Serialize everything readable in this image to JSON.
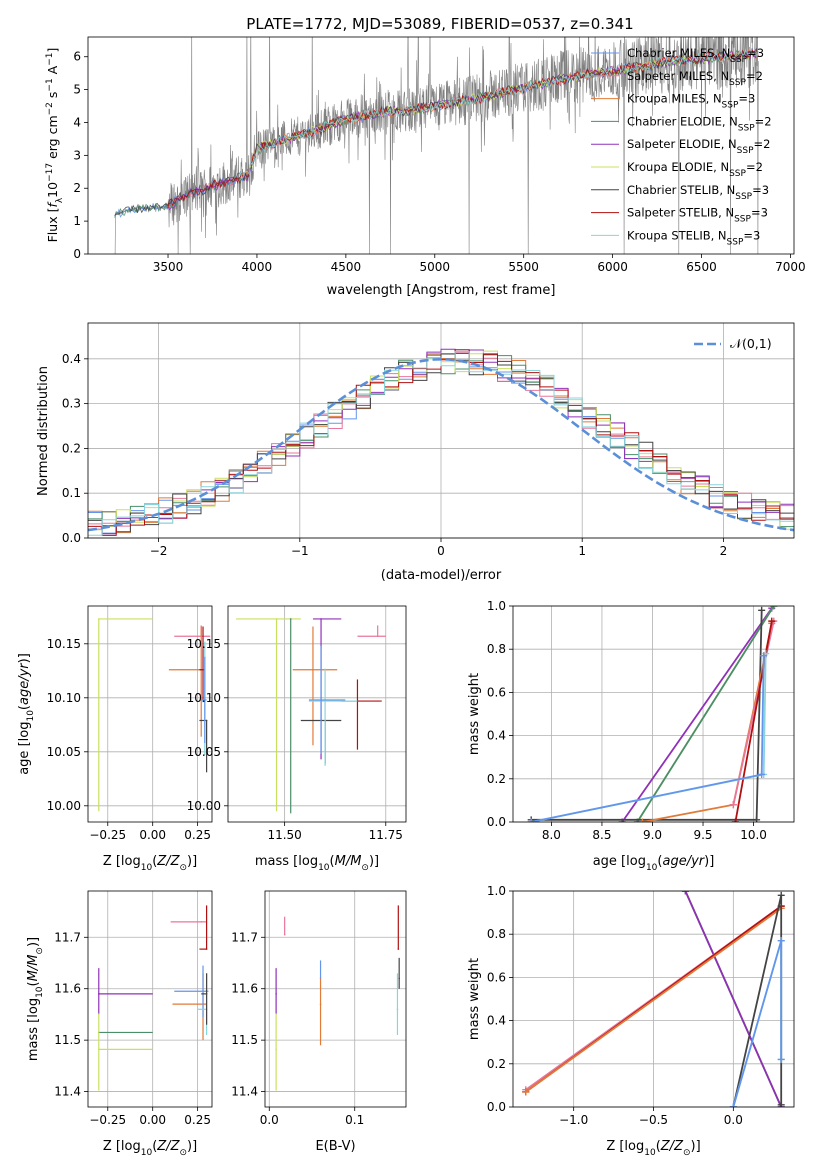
{
  "figure": {
    "title": "PLATE=1772, MJD=53089, FIBERID=0537, z=0.341"
  },
  "colors": {
    "blue": "#6495ed",
    "pink": "#e8779b",
    "orange": "#e07b39",
    "green": "#4a8f6a",
    "purple": "#9030b8",
    "yellowgreen": "#c8e060",
    "black": "#444444",
    "red": "#b01010",
    "cyan": "#88d4dc",
    "observed": "#808080",
    "gauss": "#5b8fd8"
  },
  "chart_data": [
    {
      "id": "spectrum",
      "type": "line",
      "title": "PLATE=1772, MJD=53089, FIBERID=0537, z=0.341",
      "xlabel": "wavelength [Angstrom, rest frame]",
      "ylabel": "Flux [f_λ 10^-17 erg cm^-2 s^-1 A^-1]",
      "xlim": [
        3050,
        7020
      ],
      "ylim": [
        0,
        6.6
      ],
      "xticks": [
        3500,
        4000,
        4500,
        5000,
        5500,
        6000,
        6500,
        7000
      ],
      "yticks": [
        0,
        1,
        2,
        3,
        4,
        5,
        6
      ],
      "grid": false,
      "legend_position": "top-right",
      "legend": [
        {
          "label": "Chabrier MILES, N_SSP=3",
          "color_key": "blue"
        },
        {
          "label": "Salpeter MILES, N_SSP=2",
          "color_key": "pink"
        },
        {
          "label": "Kroupa MILES, N_SSP=3",
          "color_key": "orange"
        },
        {
          "label": "Chabrier ELODIE, N_SSP=2",
          "color_key": "green"
        },
        {
          "label": "Salpeter ELODIE, N_SSP=2",
          "color_key": "purple"
        },
        {
          "label": "Kroupa ELODIE, N_SSP=2",
          "color_key": "yellowgreen"
        },
        {
          "label": "Chabrier STELIB, N_SSP=3",
          "color_key": "black"
        },
        {
          "label": "Salpeter STELIB, N_SSP=3",
          "color_key": "red"
        },
        {
          "label": "Kroupa STELIB, N_SSP=3",
          "color_key": "cyan"
        }
      ],
      "continuum": {
        "x": [
          3200,
          3300,
          3500,
          3600,
          3800,
          3950,
          4000,
          4100,
          4300,
          4500,
          4700,
          4900,
          5100,
          5300,
          5500,
          5700,
          5900,
          6100,
          6300,
          6500,
          6700,
          6820
        ],
        "y": [
          1.2,
          1.35,
          1.45,
          1.8,
          2.15,
          2.4,
          3.2,
          3.4,
          3.7,
          4.1,
          4.3,
          4.4,
          4.6,
          4.8,
          5.05,
          5.3,
          5.5,
          5.65,
          5.85,
          5.95,
          6.05,
          6.1
        ]
      }
    },
    {
      "id": "residuals",
      "type": "line",
      "xlabel": "(data-model)/error",
      "ylabel": "Normed distribution",
      "xlim": [
        -2.5,
        2.5
      ],
      "ylim": [
        0,
        0.48
      ],
      "xticks": [
        -2,
        -1,
        0,
        1,
        2
      ],
      "yticks": [
        0.0,
        0.1,
        0.2,
        0.3,
        0.4
      ],
      "grid": true,
      "legend_position": "top-right",
      "gaussian_label": "𝒩(0,1)",
      "bin_width": 0.1
    },
    {
      "id": "age_vs_Z",
      "type": "scatter",
      "xlabel": "Z [log10(Z/Z⊙)]",
      "ylabel": "age [log10(age/yr)]",
      "xlim": [
        -0.36,
        0.33
      ],
      "ylim": [
        9.985,
        10.185
      ],
      "xticks": [
        -0.25,
        0.0,
        0.25
      ],
      "yticks": [
        10.0,
        10.05,
        10.1,
        10.15
      ],
      "grid": true,
      "points": [
        {
          "key": "yellowgreen",
          "x": -0.3,
          "y": 10.173,
          "xerr": [
            0.0,
            0.3
          ],
          "yerr": [
            0.178,
            0.0
          ]
        },
        {
          "key": "pink",
          "x": 0.27,
          "y": 10.157,
          "xerr": [
            0.15,
            0.05
          ],
          "yerr": [
            0.0,
            0.01
          ]
        },
        {
          "key": "orange",
          "x": 0.27,
          "y": 10.126,
          "xerr": [
            0.18,
            0.02
          ],
          "yerr": [
            0.062,
            0.04
          ]
        },
        {
          "key": "red",
          "x": 0.28,
          "y": 10.126,
          "xerr": [
            0.02,
            0.0
          ],
          "yerr": [
            0.03,
            0.04
          ]
        },
        {
          "key": "black",
          "x": 0.3,
          "y": 10.079,
          "xerr": [
            0.04,
            0.0
          ],
          "yerr": [
            0.048,
            0.0
          ]
        },
        {
          "key": "cyan",
          "x": 0.29,
          "y": 10.097,
          "xerr": [
            0.02,
            0.0
          ],
          "yerr": [
            0.05,
            0.055
          ]
        },
        {
          "key": "blue",
          "x": 0.29,
          "y": 10.098,
          "xerr": [
            0.02,
            0.01
          ],
          "yerr": [
            0.04,
            0.04
          ]
        }
      ]
    },
    {
      "id": "age_vs_mass",
      "type": "scatter",
      "xlabel": "mass [log10(M/M⊙)]",
      "ylabel": "",
      "xlim": [
        11.36,
        11.8
      ],
      "ylim": [
        9.985,
        10.185
      ],
      "xticks": [
        11.5,
        11.75
      ],
      "yticks": [
        10.0,
        10.05,
        10.1,
        10.15
      ],
      "grid": true,
      "points": [
        {
          "key": "yellowgreen",
          "x": 11.48,
          "y": 10.173,
          "xerr": [
            0.1,
            0.06
          ],
          "yerr": [
            0.178,
            0.0
          ]
        },
        {
          "key": "green",
          "x": 11.515,
          "y": 10.173,
          "xerr": [
            0.0,
            0.0
          ],
          "yerr": [
            0.18,
            0.0
          ]
        },
        {
          "key": "pink",
          "x": 11.73,
          "y": 10.157,
          "xerr": [
            0.05,
            0.02
          ],
          "yerr": [
            0.0,
            0.01
          ]
        },
        {
          "key": "purple",
          "x": 11.59,
          "y": 10.173,
          "xerr": [
            0.02,
            0.05
          ],
          "yerr": [
            0.13,
            0.0
          ]
        },
        {
          "key": "orange",
          "x": 11.57,
          "y": 10.126,
          "xerr": [
            0.05,
            0.06
          ],
          "yerr": [
            0.07,
            0.04
          ]
        },
        {
          "key": "red",
          "x": 11.68,
          "y": 10.097,
          "xerr": [
            0.04,
            0.06
          ],
          "yerr": [
            0.045,
            0.02
          ]
        },
        {
          "key": "black",
          "x": 11.6,
          "y": 10.079,
          "xerr": [
            0.06,
            0.04
          ],
          "yerr": [
            0.04,
            0.0
          ]
        },
        {
          "key": "cyan",
          "x": 11.6,
          "y": 10.097,
          "xerr": [
            0.04,
            0.08
          ],
          "yerr": [
            0.06,
            0.03
          ]
        },
        {
          "key": "blue",
          "x": 11.59,
          "y": 10.098,
          "xerr": [
            0.03,
            0.06
          ],
          "yerr": [
            0.05,
            0.05
          ]
        }
      ]
    },
    {
      "id": "massweight_vs_age",
      "type": "line",
      "xlabel": "age [log10(age/yr)]",
      "ylabel": "mass weight",
      "xlim": [
        7.62,
        10.4
      ],
      "ylim": [
        0,
        1
      ],
      "xticks": [
        8.0,
        8.5,
        9.0,
        9.5,
        10.0
      ],
      "yticks": [
        0.0,
        0.2,
        0.4,
        0.6,
        0.8,
        1.0
      ],
      "grid": true,
      "series": [
        {
          "key": "purple",
          "x": [
            8.7,
            10.18
          ],
          "y": [
            0.0,
            0.99
          ]
        },
        {
          "key": "yellowgreen",
          "x": [
            8.85,
            10.2
          ],
          "y": [
            0.0,
            1.0
          ]
        },
        {
          "key": "green",
          "x": [
            8.85,
            10.2
          ],
          "y": [
            0.0,
            1.0
          ]
        },
        {
          "key": "black",
          "x": [
            7.8,
            10.03,
            10.08
          ],
          "y": [
            0.01,
            0.01,
            0.98
          ]
        },
        {
          "key": "orange",
          "x": [
            8.9,
            9.8,
            10.18
          ],
          "y": [
            0.0,
            0.08,
            0.92
          ]
        },
        {
          "key": "pink",
          "x": [
            9.8,
            10.2
          ],
          "y": [
            0.08,
            0.93
          ]
        },
        {
          "key": "red",
          "x": [
            9.82,
            10.18
          ],
          "y": [
            0.0,
            0.93
          ]
        },
        {
          "key": "cyan",
          "x": [
            7.8,
            10.1,
            10.12
          ],
          "y": [
            0.0,
            0.22,
            0.78
          ]
        },
        {
          "key": "blue",
          "x": [
            7.8,
            10.08,
            10.1
          ],
          "y": [
            0.0,
            0.22,
            0.77
          ]
        }
      ]
    },
    {
      "id": "mass_vs_Z",
      "type": "scatter",
      "xlabel": "Z [log10(Z/Z⊙)]",
      "ylabel": "mass [log10(M/M⊙)]",
      "xlim": [
        -0.36,
        0.33
      ],
      "ylim": [
        11.37,
        11.79
      ],
      "xticks": [
        -0.25,
        0.0,
        0.25
      ],
      "yticks": [
        11.4,
        11.5,
        11.6,
        11.7
      ],
      "grid": true,
      "points": [
        {
          "key": "purple",
          "x": -0.3,
          "y": 11.59,
          "xerr": [
            0.0,
            0.3
          ],
          "yerr": [
            0.04,
            0.05
          ]
        },
        {
          "key": "green",
          "x": -0.3,
          "y": 11.515,
          "xerr": [
            0.0,
            0.3
          ],
          "yerr": [
            0.0,
            0.0
          ]
        },
        {
          "key": "yellowgreen",
          "x": -0.3,
          "y": 11.482,
          "xerr": [
            0.0,
            0.3
          ],
          "yerr": [
            0.08,
            0.07
          ]
        },
        {
          "key": "pink",
          "x": 0.27,
          "y": 11.73,
          "xerr": [
            0.17,
            0.03
          ],
          "yerr": [
            0.0,
            0.0
          ]
        },
        {
          "key": "red",
          "x": 0.3,
          "y": 11.677,
          "xerr": [
            0.04,
            0.0
          ],
          "yerr": [
            0.0,
            0.085
          ]
        },
        {
          "key": "orange",
          "x": 0.28,
          "y": 11.57,
          "xerr": [
            0.17,
            0.02
          ],
          "yerr": [
            0.07,
            0.06
          ]
        },
        {
          "key": "blue",
          "x": 0.28,
          "y": 11.595,
          "xerr": [
            0.16,
            0.03
          ],
          "yerr": [
            0.05,
            0.05
          ]
        },
        {
          "key": "cyan",
          "x": 0.3,
          "y": 11.56,
          "xerr": [
            0.05,
            0.0
          ],
          "yerr": [
            0.05,
            0.07
          ]
        },
        {
          "key": "black",
          "x": 0.3,
          "y": 11.59,
          "xerr": [
            0.03,
            0.0
          ],
          "yerr": [
            0.06,
            0.04
          ]
        }
      ]
    },
    {
      "id": "mass_vs_EBV",
      "type": "scatter",
      "xlabel": "E(B-V)",
      "ylabel": "",
      "xlim": [
        -0.005,
        0.16
      ],
      "ylim": [
        11.37,
        11.79
      ],
      "xticks": [
        0.0,
        0.1
      ],
      "yticks": [
        11.4,
        11.5,
        11.6,
        11.7
      ],
      "grid": true,
      "points": [
        {
          "key": "purple",
          "x": 0.008,
          "y": 11.59,
          "xerr": [
            0,
            0
          ],
          "yerr": [
            0.04,
            0.05
          ]
        },
        {
          "key": "yellowgreen",
          "x": 0.008,
          "y": 11.482,
          "xerr": [
            0,
            0
          ],
          "yerr": [
            0.08,
            0.07
          ]
        },
        {
          "key": "pink",
          "x": 0.018,
          "y": 11.705,
          "xerr": [
            0,
            0
          ],
          "yerr": [
            0.0,
            0.035
          ]
        },
        {
          "key": "blue",
          "x": 0.06,
          "y": 11.62,
          "xerr": [
            0,
            0
          ],
          "yerr": [
            0.0,
            0.035
          ]
        },
        {
          "key": "orange",
          "x": 0.06,
          "y": 11.57,
          "xerr": [
            0,
            0
          ],
          "yerr": [
            0.08,
            0.05
          ]
        },
        {
          "key": "red",
          "x": 0.151,
          "y": 11.677,
          "xerr": [
            0,
            0
          ],
          "yerr": [
            0.0,
            0.085
          ]
        },
        {
          "key": "cyan",
          "x": 0.15,
          "y": 11.56,
          "xerr": [
            0,
            0
          ],
          "yerr": [
            0.05,
            0.07
          ]
        },
        {
          "key": "black",
          "x": 0.152,
          "y": 11.62,
          "xerr": [
            0,
            0
          ],
          "yerr": [
            0.02,
            0.04
          ]
        }
      ]
    },
    {
      "id": "massweight_vs_Z",
      "type": "line",
      "xlabel": "Z [log10(Z/Z⊙)]",
      "ylabel": "mass weight",
      "xlim": [
        -1.38,
        0.38
      ],
      "ylim": [
        0,
        1
      ],
      "xticks": [
        -1.0,
        -0.5,
        0.0
      ],
      "yticks": [
        0.0,
        0.2,
        0.4,
        0.6,
        0.8,
        1.0
      ],
      "grid": true,
      "series": [
        {
          "key": "yellowgreen",
          "x": [
            -0.3,
            0.3
          ],
          "y": [
            1.0,
            0.0
          ]
        },
        {
          "key": "green",
          "x": [
            -0.3,
            0.3
          ],
          "y": [
            1.0,
            0.0
          ]
        },
        {
          "key": "purple",
          "x": [
            -0.3,
            0.3
          ],
          "y": [
            1.0,
            0.0
          ]
        },
        {
          "key": "pink",
          "x": [
            -1.3,
            0.3
          ],
          "y": [
            0.08,
            0.93
          ]
        },
        {
          "key": "red",
          "x": [
            -1.3,
            0.3
          ],
          "y": [
            0.07,
            0.93
          ]
        },
        {
          "key": "orange",
          "x": [
            -1.3,
            0.3
          ],
          "y": [
            0.07,
            0.92
          ]
        },
        {
          "key": "black",
          "x": [
            0.0,
            0.3,
            0.3
          ],
          "y": [
            0.0,
            0.98,
            0.01
          ]
        },
        {
          "key": "cyan",
          "x": [
            0.0,
            0.3,
            0.3
          ],
          "y": [
            0.0,
            0.77,
            0.22
          ]
        },
        {
          "key": "blue",
          "x": [
            0.0,
            0.3,
            0.3
          ],
          "y": [
            0.0,
            0.77,
            0.22
          ]
        }
      ]
    }
  ]
}
